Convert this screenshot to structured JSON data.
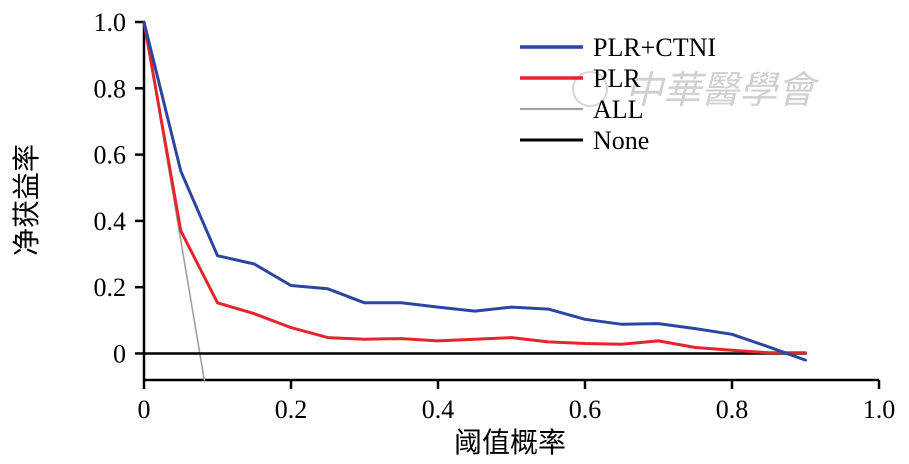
{
  "chart_data": {
    "type": "line",
    "xlabel": "阈值概率",
    "ylabel": "净获益率",
    "xlim": [
      0,
      1.0
    ],
    "ylim": [
      -0.08,
      1.0
    ],
    "xticks": [
      "0",
      "0.2",
      "0.4",
      "0.6",
      "0.8",
      "1.0"
    ],
    "yticks": [
      "0",
      "0.2",
      "0.4",
      "0.6",
      "0.8",
      "1.0"
    ],
    "legend_position": "top-right",
    "series": [
      {
        "name": "PLR+CTNI",
        "color": "#2b45a0",
        "x": [
          0,
          0.05,
          0.1,
          0.15,
          0.2,
          0.25,
          0.3,
          0.35,
          0.4,
          0.45,
          0.5,
          0.55,
          0.6,
          0.65,
          0.7,
          0.75,
          0.8,
          0.85,
          0.9
        ],
        "y": [
          1.0,
          0.55,
          0.295,
          0.27,
          0.205,
          0.195,
          0.153,
          0.153,
          0.14,
          0.128,
          0.14,
          0.134,
          0.103,
          0.088,
          0.09,
          0.075,
          0.058,
          0.02,
          -0.02
        ]
      },
      {
        "name": "PLR",
        "color": "#e4252c",
        "x": [
          0,
          0.05,
          0.1,
          0.15,
          0.2,
          0.25,
          0.3,
          0.35,
          0.4,
          0.45,
          0.5,
          0.55,
          0.6,
          0.65,
          0.7,
          0.75,
          0.8,
          0.85,
          0.9
        ],
        "y": [
          1.0,
          0.37,
          0.153,
          0.12,
          0.078,
          0.048,
          0.043,
          0.045,
          0.038,
          0.043,
          0.048,
          0.035,
          0.03,
          0.028,
          0.038,
          0.018,
          0.01,
          0.002,
          0.002
        ]
      },
      {
        "name": "ALL",
        "color": "#a0a0a0",
        "x": [
          0,
          0.082
        ],
        "y": [
          1.0,
          -0.08
        ]
      },
      {
        "name": "None",
        "color": "#000000",
        "x": [
          0,
          0.9
        ],
        "y": [
          0,
          0
        ]
      }
    ]
  },
  "watermark_text": "中華醫學會"
}
